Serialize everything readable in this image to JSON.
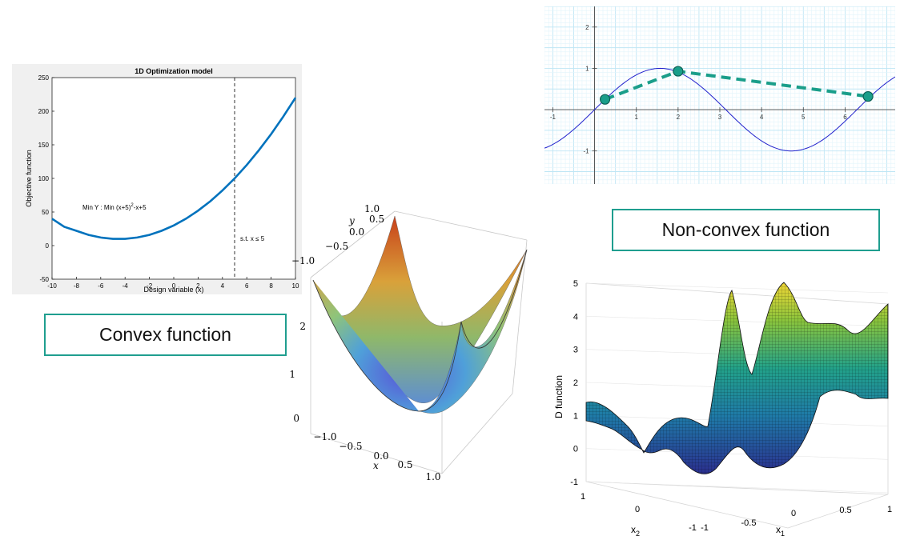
{
  "captions": {
    "convex": "Convex function",
    "nonconvex": "Non-convex function"
  },
  "chart_data": [
    {
      "type": "line",
      "title": "1D Optimization model",
      "xlabel": "Design variable (x)",
      "ylabel": "Objective function",
      "xlim": [
        -10,
        10
      ],
      "ylim": [
        -50,
        250
      ],
      "xticks": [
        "-10",
        "-8",
        "-6",
        "-4",
        "-2",
        "0",
        "2",
        "4",
        "6",
        "8",
        "10"
      ],
      "yticks": [
        "-50",
        "0",
        "50",
        "100",
        "150",
        "200",
        "250"
      ],
      "series": [
        {
          "x": [
            -10,
            -9,
            -8,
            -7,
            -6,
            -5,
            -4,
            -3,
            -2,
            -1,
            0,
            1,
            2,
            3,
            4,
            5,
            6,
            7,
            8,
            9,
            10
          ],
          "values": [
            40,
            28,
            22,
            16,
            12,
            10,
            10,
            12,
            16,
            22,
            30,
            40,
            52,
            66,
            82,
            100,
            120,
            142,
            166,
            192,
            220
          ],
          "color": "#0072bd"
        }
      ],
      "vline": {
        "x": 5,
        "style": "dashed"
      },
      "annotations": {
        "objective_main": "Min Y : Min (x+5)",
        "objective_sup": "2",
        "objective_tail": "-x+5",
        "constraint": "s.t. x ≤ 5"
      }
    },
    {
      "type": "line",
      "xlim": [
        -1.2,
        7.2
      ],
      "ylim": [
        -1.8,
        2.5
      ],
      "xticks": [
        "-1",
        "1",
        "2",
        "3",
        "4",
        "5",
        "6"
      ],
      "yticks": [
        "-1",
        "1",
        "2"
      ],
      "grid": true,
      "series": [
        {
          "function": "sin",
          "x_start": -1.2,
          "x_end": 7.2,
          "color": "#2222cc"
        },
        {
          "style": "dashed",
          "color": "#1a9e8a",
          "points": [
            {
              "x": 0.25,
              "y": 0.25
            },
            {
              "x": 2.0,
              "y": 0.93
            },
            {
              "x": 6.55,
              "y": 0.32
            }
          ]
        }
      ]
    },
    {
      "type": "surface",
      "function": "x^2 + y^2",
      "x_ticks": [
        "−1.0",
        "−0.5",
        "0.0",
        "0.5",
        "1.0"
      ],
      "y_ticks": [
        "−1.0",
        "−0.5",
        "0.0",
        "0.5",
        "1.0"
      ],
      "z_ticks": [
        "0",
        "1",
        "2"
      ],
      "xlabel": "x",
      "ylabel": "y"
    },
    {
      "type": "surface",
      "zlabel": "D function",
      "xlabel_base": "x",
      "xlabel_sub": "1",
      "ylabel_base": "x",
      "ylabel_sub": "2",
      "z_ticks": [
        "-1",
        "0",
        "1",
        "2",
        "3",
        "4",
        "5"
      ],
      "x1_ticks": [
        "-1",
        "-0.5",
        "0",
        "0.5",
        "1"
      ],
      "x2_ticks": [
        "-1",
        "0",
        "1"
      ]
    }
  ]
}
